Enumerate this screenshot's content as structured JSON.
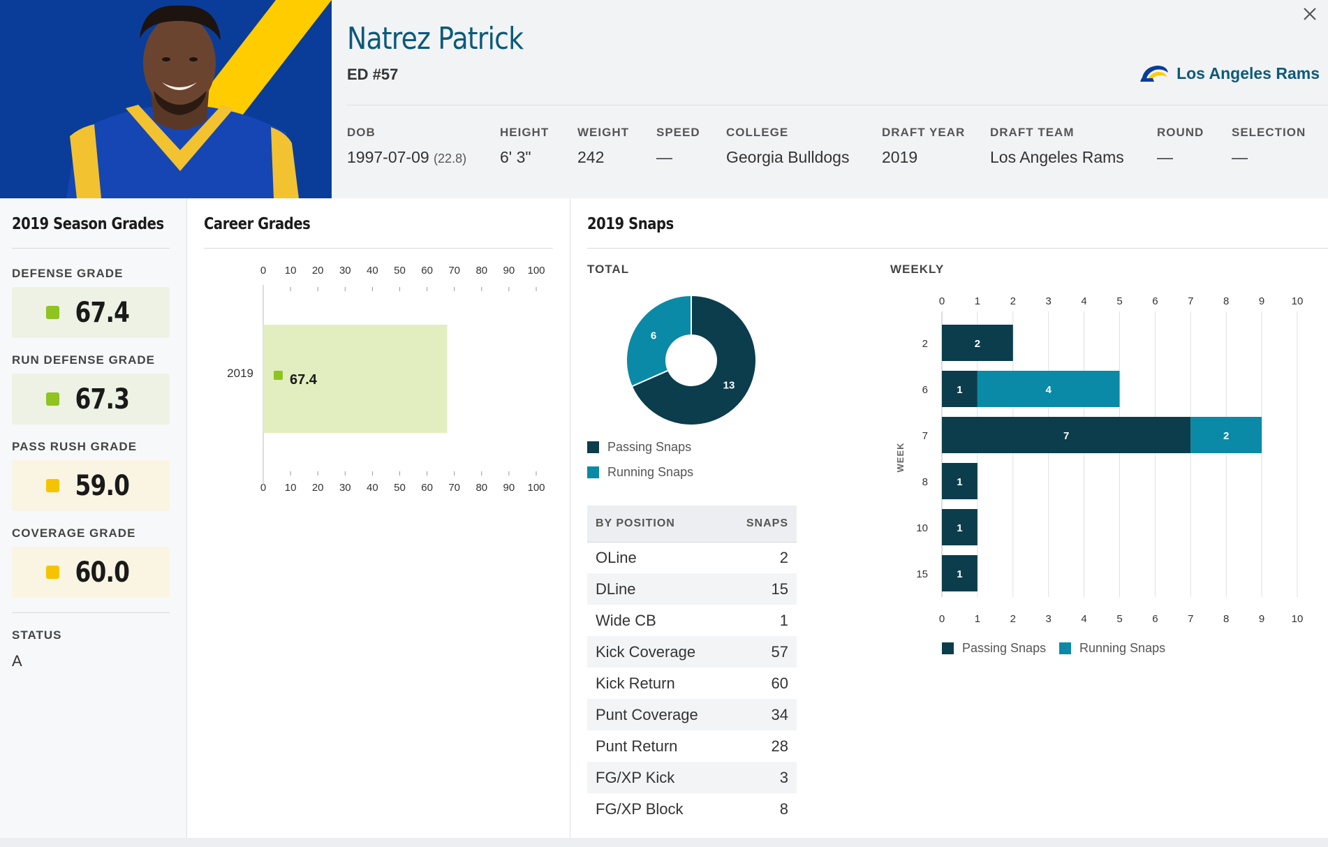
{
  "player": {
    "name": "Natrez Patrick",
    "position": "ED #57",
    "team": "Los Angeles Rams"
  },
  "colors": {
    "brand_blue": "#0a3d99",
    "brand_gold": "#ffcc00",
    "passing": "#0b3d4c",
    "running": "#0a8aa6",
    "grade_green": "#8fc31f",
    "grade_yellow": "#f5c400",
    "bar_career": "#e2eebf"
  },
  "bio": {
    "dob": {
      "label": "DOB",
      "value": "1997-07-09",
      "age": "(22.8)"
    },
    "height": {
      "label": "HEIGHT",
      "value": "6' 3\""
    },
    "weight": {
      "label": "WEIGHT",
      "value": "242"
    },
    "speed": {
      "label": "SPEED",
      "value": "—"
    },
    "college": {
      "label": "COLLEGE",
      "value": "Georgia Bulldogs"
    },
    "draft_year": {
      "label": "DRAFT YEAR",
      "value": "2019"
    },
    "draft_team": {
      "label": "DRAFT TEAM",
      "value": "Los Angeles Rams"
    },
    "round": {
      "label": "ROUND",
      "value": "—"
    },
    "selection": {
      "label": "SELECTION",
      "value": "—"
    }
  },
  "season_grades": {
    "title": "2019 Season Grades",
    "grades": [
      {
        "label": "DEFENSE GRADE",
        "value": "67.4",
        "level": "green"
      },
      {
        "label": "RUN DEFENSE GRADE",
        "value": "67.3",
        "level": "green"
      },
      {
        "label": "PASS RUSH GRADE",
        "value": "59.0",
        "level": "yellow"
      },
      {
        "label": "COVERAGE GRADE",
        "value": "60.0",
        "level": "yellow"
      }
    ],
    "status_label": "STATUS",
    "status_value": "A"
  },
  "career": {
    "title": "Career Grades"
  },
  "snaps": {
    "title": "2019 Snaps",
    "total_label": "TOTAL",
    "weekly_label": "WEEKLY",
    "legend": {
      "passing": "Passing Snaps",
      "running": "Running Snaps"
    },
    "table": {
      "header_position": "BY POSITION",
      "header_snaps": "SNAPS",
      "rows": [
        {
          "position": "OLine",
          "snaps": "2"
        },
        {
          "position": "DLine",
          "snaps": "15"
        },
        {
          "position": "Wide CB",
          "snaps": "1"
        },
        {
          "position": "Kick Coverage",
          "snaps": "57"
        },
        {
          "position": "Kick Return",
          "snaps": "60"
        },
        {
          "position": "Punt Coverage",
          "snaps": "34"
        },
        {
          "position": "Punt Return",
          "snaps": "28"
        },
        {
          "position": "FG/XP Kick",
          "snaps": "3"
        },
        {
          "position": "FG/XP Block",
          "snaps": "8"
        }
      ]
    }
  },
  "chart_data": [
    {
      "type": "bar",
      "orientation": "horizontal",
      "categories": [
        "2019"
      ],
      "values": [
        67.4
      ],
      "data_labels": [
        "67.4"
      ],
      "xlim": [
        0,
        100
      ],
      "x_ticks": [
        0,
        10,
        20,
        30,
        40,
        50,
        60,
        70,
        80,
        90,
        100
      ],
      "tick_labels_top_and_bottom": true
    },
    {
      "type": "pie",
      "donut": true,
      "slices": [
        {
          "name": "Passing Snaps",
          "value": 13
        },
        {
          "name": "Running Snaps",
          "value": 6
        }
      ],
      "legend": [
        "Passing Snaps",
        "Running Snaps"
      ],
      "legend_position": "bottom"
    },
    {
      "type": "bar",
      "orientation": "horizontal",
      "stacked": true,
      "categories": [
        "2",
        "6",
        "7",
        "8",
        "10",
        "15"
      ],
      "series": [
        {
          "name": "Passing Snaps",
          "values": [
            2,
            1,
            7,
            1,
            1,
            1
          ]
        },
        {
          "name": "Running Snaps",
          "values": [
            0,
            4,
            2,
            0,
            0,
            0
          ]
        }
      ],
      "ylabel": "WEEK",
      "xlim": [
        0,
        10
      ],
      "x_ticks": [
        0,
        1,
        2,
        3,
        4,
        5,
        6,
        7,
        8,
        9,
        10
      ],
      "grid": true,
      "legend_position": "bottom"
    }
  ]
}
